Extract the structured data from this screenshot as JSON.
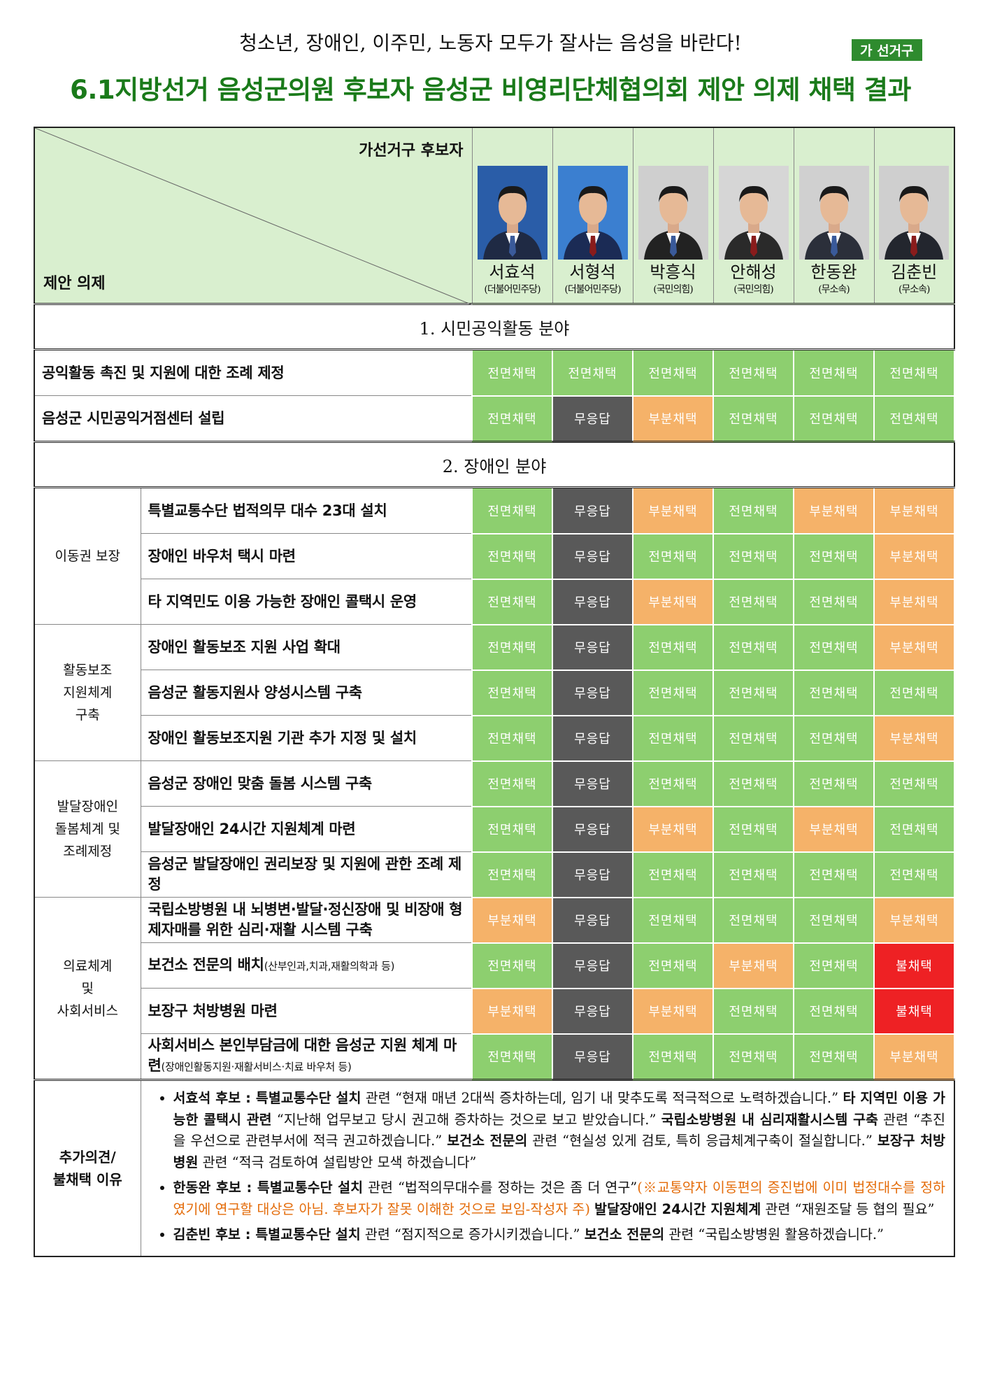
{
  "header": {
    "subtitle": "청소년, 장애인, 이주민, 노동자 모두가 잘사는 음성을 바란다!",
    "badge": "가 선거구",
    "title": "6.1지방선거 음성군의원 후보자 음성군 비영리단체협의회 제안 의제 채택 결과"
  },
  "table": {
    "corner_top": "가선거구 후보자",
    "corner_bottom": "제안 의제",
    "candidates": [
      {
        "name": "서효석",
        "party": "(더불어민주당)"
      },
      {
        "name": "서형석",
        "party": "(더불어민주당)"
      },
      {
        "name": "박흥식",
        "party": "(국민의힘)"
      },
      {
        "name": "안해성",
        "party": "(국민의힘)"
      },
      {
        "name": "한동완",
        "party": "(무소속)"
      },
      {
        "name": "김춘빈",
        "party": "(무소속)"
      }
    ],
    "result_colors": {
      "전면채택": "#8dcf6f",
      "부분채택": "#f5b269",
      "무응답": "#595959",
      "불채택": "#ee2124"
    },
    "sections": [
      {
        "title": "1. 시민공익활동 분야",
        "items": [
          {
            "text": "공익활동 촉진 및 지원에 대한 조례 제정",
            "results": [
              "전면채택",
              "전면채택",
              "전면채택",
              "전면채택",
              "전면채택",
              "전면채택"
            ]
          },
          {
            "text": "음성군 시민공익거점센터 설립",
            "results": [
              "전면채택",
              "무응답",
              "부분채택",
              "전면채택",
              "전면채택",
              "전면채택"
            ]
          }
        ]
      },
      {
        "title": "2. 장애인 분야",
        "groups": [
          {
            "label": "이동권 보장",
            "items": [
              {
                "text": "특별교통수단 법적의무 대수 23대 설치",
                "results": [
                  "전면채택",
                  "무응답",
                  "부분채택",
                  "전면채택",
                  "부분채택",
                  "부분채택"
                ]
              },
              {
                "text": "장애인 바우처 택시 마련",
                "results": [
                  "전면채택",
                  "무응답",
                  "전면채택",
                  "전면채택",
                  "전면채택",
                  "부분채택"
                ]
              },
              {
                "text": "타 지역민도 이용 가능한 장애인 콜택시 운영",
                "results": [
                  "전면채택",
                  "무응답",
                  "부분채택",
                  "전면채택",
                  "전면채택",
                  "부분채택"
                ]
              }
            ]
          },
          {
            "label": "활동보조\n지원체계\n구축",
            "items": [
              {
                "text": "장애인 활동보조 지원 사업 확대",
                "results": [
                  "전면채택",
                  "무응답",
                  "전면채택",
                  "전면채택",
                  "전면채택",
                  "부분채택"
                ]
              },
              {
                "text": "음성군 활동지원사 양성시스템 구축",
                "results": [
                  "전면채택",
                  "무응답",
                  "전면채택",
                  "전면채택",
                  "전면채택",
                  "전면채택"
                ]
              },
              {
                "text": "장애인 활동보조지원 기관 추가 지정 및 설치",
                "results": [
                  "전면채택",
                  "무응답",
                  "전면채택",
                  "전면채택",
                  "전면채택",
                  "부분채택"
                ]
              }
            ]
          },
          {
            "label": "발달장애인\n돌봄체계 및\n조례제정",
            "items": [
              {
                "text": "음성군 장애인 맞춤 돌봄 시스템 구축",
                "results": [
                  "전면채택",
                  "무응답",
                  "전면채택",
                  "전면채택",
                  "전면채택",
                  "전면채택"
                ]
              },
              {
                "text": "발달장애인 24시간 지원체계 마련",
                "results": [
                  "전면채택",
                  "무응답",
                  "부분채택",
                  "전면채택",
                  "부분채택",
                  "전면채택"
                ]
              },
              {
                "text": "음성군 발달장애인 권리보장 및 지원에 관한 조례 제정",
                "results": [
                  "전면채택",
                  "무응답",
                  "전면채택",
                  "전면채택",
                  "전면채택",
                  "전면채택"
                ]
              }
            ]
          },
          {
            "label": "의료체계\n및\n사회서비스",
            "items": [
              {
                "text": "국립소방병원 내 뇌병변·발달·정신장애 및 비장애 형제자매를 위한 심리·재활 시스템 구축",
                "results": [
                  "부분채택",
                  "무응답",
                  "전면채택",
                  "전면채택",
                  "전면채택",
                  "부분채택"
                ]
              },
              {
                "text": "보건소 전문의 배치",
                "note": "(산부인과,치과,재활의학과 등)",
                "results": [
                  "전면채택",
                  "무응답",
                  "전면채택",
                  "부분채택",
                  "전면채택",
                  "불채택"
                ]
              },
              {
                "text": "보장구 처방병원 마련",
                "results": [
                  "부분채택",
                  "무응답",
                  "부분채택",
                  "전면채택",
                  "전면채택",
                  "불채택"
                ]
              },
              {
                "text": "사회서비스 본인부담금에 대한 음성군 지원 체계 마련",
                "note": "(장애인활동지원·재활서비스·치료 바우처 등)",
                "results": [
                  "전면채택",
                  "무응답",
                  "전면채택",
                  "전면채택",
                  "전면채택",
                  "부분채택"
                ]
              }
            ]
          }
        ]
      }
    ]
  },
  "notes": {
    "label": "추가의견/\n불채택 이유",
    "items": [
      {
        "segments": [
          {
            "text": "서효석 후보 : 특별교통수단 설치",
            "style": "bold"
          },
          {
            "text": " 관련 “현재 매년 2대씩 증차하는데, 임기 내 맞추도록 적극적으로 노력하겠습니다.” ",
            "style": "plain"
          },
          {
            "text": "타 지역민 이용 가능한 콜택시 관련",
            "style": "bold"
          },
          {
            "text": " “지난해 업무보고 당시 권고해 증차하는 것으로 보고 받았습니다.” ",
            "style": "plain"
          },
          {
            "text": "국립소방병원 내 심리재활시스템 구축",
            "style": "bold"
          },
          {
            "text": " 관련 “추진을 우선으로 관련부서에 적극 권고하겠습니다.” ",
            "style": "plain"
          },
          {
            "text": "보건소 전문의",
            "style": "bold"
          },
          {
            "text": " 관련 “현실성 있게 검토, 특히 응급체계구축이 절실합니다.” ",
            "style": "plain"
          },
          {
            "text": "보장구 처방병원",
            "style": "bold"
          },
          {
            "text": " 관련 “적극 검토하여 설립방안 모색 하겠습니다”",
            "style": "plain"
          }
        ]
      },
      {
        "segments": [
          {
            "text": "한동완 후보 : 특별교통수단 설치",
            "style": "bold"
          },
          {
            "text": " 관련 “법적의무대수를 정하는 것은 좀 더 연구”",
            "style": "plain"
          },
          {
            "text": "(※교통약자 이동편의 증진법에 이미 법정대수를 정하였기에 연구할 대상은 아님. 후보자가 잘못 이해한 것으로 보임-작성자 주) ",
            "style": "accent"
          },
          {
            "text": "발달장애인 24시간 지원체계",
            "style": "bold"
          },
          {
            "text": " 관련 “재원조달 등 협의 필요”",
            "style": "plain"
          }
        ]
      },
      {
        "segments": [
          {
            "text": "김춘빈 후보 : 특별교통수단 설치",
            "style": "bold"
          },
          {
            "text": " 관련 “점지적으로 증가시키겠습니다.” ",
            "style": "plain"
          },
          {
            "text": "보건소 전문의",
            "style": "bold"
          },
          {
            "text": " 관련 “국립소방병원 활용하겠습니다.”",
            "style": "plain"
          }
        ]
      }
    ]
  }
}
